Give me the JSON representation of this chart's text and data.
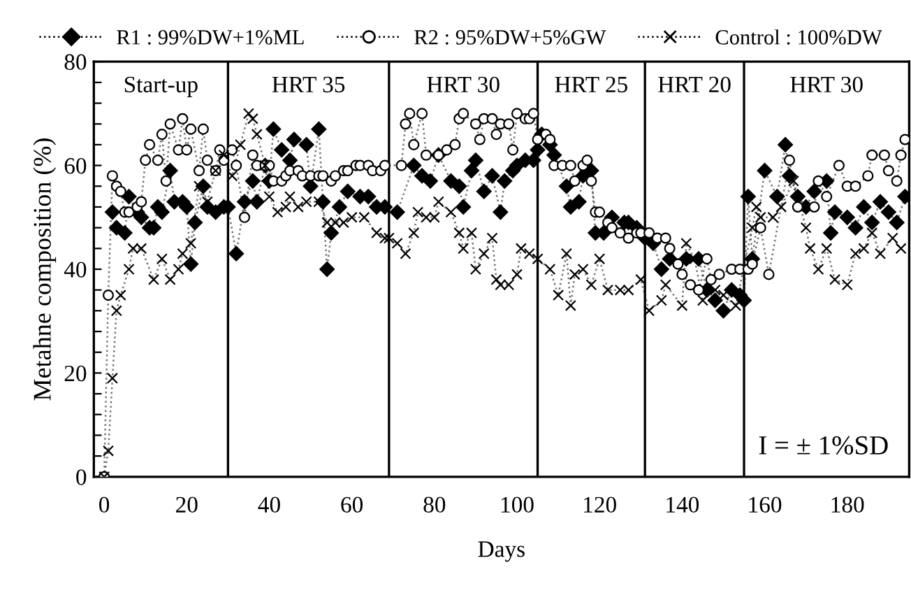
{
  "chart_data": {
    "type": "line",
    "xlabel": "Days",
    "ylabel": "Metahne composition (%)",
    "xlim": [
      -2.5,
      195
    ],
    "ylim": [
      0,
      80
    ],
    "xticks": [
      0,
      20,
      40,
      60,
      80,
      100,
      120,
      140,
      160,
      180
    ],
    "yticks": [
      0,
      {
        "value": 4,
        "label": null
      },
      {
        "value": 8,
        "label": null
      },
      {
        "value": 12,
        "label": null
      },
      {
        "value": 16,
        "label": null
      },
      20,
      {
        "value": 24,
        "label": null
      },
      {
        "value": 28,
        "label": null
      },
      {
        "value": 32,
        "label": null
      },
      {
        "value": 36,
        "label": null
      },
      40,
      {
        "value": 44,
        "label": null
      },
      {
        "value": 48,
        "label": null
      },
      {
        "value": 52,
        "label": null
      },
      {
        "value": 56,
        "label": null
      },
      60,
      {
        "value": 64,
        "label": null
      },
      {
        "value": 68,
        "label": null
      },
      {
        "value": 72,
        "label": null
      },
      {
        "value": 76,
        "label": null
      },
      80
    ],
    "grid": false,
    "legend": "top",
    "line_style": "dotted",
    "ref_lines": [
      {
        "axis": "x",
        "value": 30,
        "color": "#000000"
      },
      {
        "axis": "x",
        "value": 69,
        "color": "#000000"
      },
      {
        "axis": "x",
        "value": 105,
        "color": "#000000"
      },
      {
        "axis": "x",
        "value": 131,
        "color": "#000000"
      },
      {
        "axis": "x",
        "value": 155,
        "color": "#000000"
      }
    ],
    "annotations": [
      "Start-up",
      "HRT 35",
      "HRT 30",
      "HRT 25",
      "HRT 20",
      "HRT 30",
      "I = ± 1%SD"
    ],
    "series": [
      {
        "name": "R1 : 99%DW+1%ML",
        "color": "#000000",
        "marker": "diamond",
        "x": [
          2,
          3,
          5,
          6,
          8,
          9,
          11,
          12,
          13,
          14,
          16,
          17,
          19,
          20,
          21,
          22,
          24,
          25,
          27,
          29,
          30,
          32,
          34,
          36,
          37,
          39,
          40,
          41,
          43,
          45,
          46,
          49,
          50,
          52,
          53,
          54,
          55,
          57,
          59,
          62,
          64,
          66,
          68,
          71,
          75,
          77,
          79,
          81,
          84,
          86,
          87,
          89,
          90,
          92,
          94,
          96,
          97,
          99,
          100,
          102,
          104,
          105,
          106,
          108,
          109,
          112,
          113,
          115,
          116,
          118,
          119,
          121,
          123,
          126,
          127,
          129,
          131,
          133,
          135,
          137,
          141,
          144,
          146,
          148,
          150,
          152,
          154,
          155,
          156,
          157,
          160,
          163,
          165,
          166,
          168,
          170,
          172,
          175,
          176,
          177,
          180,
          182,
          184,
          186,
          188,
          190,
          192,
          194
        ],
        "values": [
          51,
          48,
          47,
          54,
          51,
          50,
          48,
          48,
          52,
          51,
          59,
          53,
          53,
          52,
          41,
          49,
          56,
          52,
          51,
          52,
          52,
          43,
          53,
          57,
          53,
          60,
          57,
          67,
          63,
          61,
          65,
          64,
          56,
          67,
          53,
          40,
          47,
          52,
          55,
          54,
          54,
          52,
          52,
          51,
          60,
          58,
          57,
          62,
          57,
          56,
          52,
          59,
          61,
          55,
          58,
          51,
          57,
          59,
          60,
          61,
          61,
          63,
          66,
          64,
          62,
          56,
          52,
          53,
          58,
          59,
          47,
          47,
          50,
          49,
          49,
          48,
          46,
          45,
          40,
          42,
          42,
          42,
          36,
          34,
          32,
          36,
          35,
          34,
          54,
          42,
          59,
          54,
          64,
          58,
          54,
          52,
          55,
          57,
          47,
          51,
          50,
          48,
          52,
          49,
          53,
          51,
          49,
          54
        ]
      },
      {
        "name": "R2 : 95%DW+5%GW",
        "color": "#000000",
        "marker": "circle",
        "x": [
          0,
          1,
          2,
          3,
          4,
          5,
          6,
          8,
          9,
          10,
          11,
          13,
          14,
          15,
          16,
          18,
          19,
          20,
          21,
          23,
          24,
          25,
          27,
          28,
          29,
          31,
          32,
          34,
          36,
          37,
          39,
          40,
          41,
          43,
          44,
          45,
          47,
          48,
          50,
          52,
          53,
          55,
          56,
          58,
          59,
          61,
          62,
          64,
          65,
          67,
          68,
          72,
          73,
          74,
          75,
          77,
          78,
          81,
          83,
          85,
          86,
          87,
          90,
          91,
          92,
          94,
          95,
          96,
          98,
          99,
          100,
          102,
          103,
          104,
          105,
          107,
          108,
          109,
          111,
          113,
          114,
          116,
          117,
          118,
          119,
          120,
          122,
          123,
          125,
          127,
          129,
          130,
          132,
          134,
          136,
          137,
          139,
          140,
          142,
          144,
          146,
          147,
          149,
          152,
          154,
          156,
          157,
          159,
          161,
          166,
          168,
          172,
          173,
          175,
          178,
          180,
          182,
          185,
          186,
          189,
          190,
          192,
          193,
          194
        ],
        "values": [
          0,
          35,
          58,
          56,
          55,
          51,
          51,
          52,
          53,
          61,
          64,
          61,
          66,
          57,
          68,
          63,
          69,
          63,
          67,
          59,
          67,
          61,
          59,
          63,
          61,
          63,
          60,
          50,
          62,
          60,
          60,
          60,
          57,
          57,
          58,
          59,
          59,
          58,
          58,
          58,
          58,
          57,
          58,
          59,
          59,
          60,
          60,
          60,
          59,
          59,
          60,
          60,
          68,
          70,
          64,
          70,
          62,
          62,
          63,
          64,
          69,
          70,
          68,
          65,
          69,
          69,
          66,
          68,
          68,
          63,
          70,
          69,
          69,
          70,
          65,
          66,
          65,
          60,
          60,
          60,
          57,
          60,
          61,
          57,
          51,
          51,
          49,
          48,
          47,
          46,
          47,
          47,
          47,
          46,
          46,
          44,
          41,
          39,
          37,
          36,
          42,
          38,
          39,
          40,
          40,
          40,
          41,
          48,
          39,
          61,
          52,
          52,
          57,
          54,
          60,
          56,
          56,
          58,
          62,
          62,
          59,
          57,
          62,
          65
        ]
      },
      {
        "name": "Control : 100%DW",
        "color": "#000000",
        "marker": "cross",
        "x": [
          0,
          1,
          2,
          3,
          4,
          6,
          7,
          9,
          12,
          14,
          16,
          18,
          19,
          21,
          23,
          25,
          27,
          29,
          31,
          33,
          35,
          36,
          37,
          39,
          40,
          42,
          44,
          45,
          47,
          49,
          52,
          54,
          56,
          58,
          60,
          63,
          66,
          68,
          69,
          71,
          73,
          75,
          76,
          78,
          80,
          81,
          84,
          86,
          87,
          89,
          90,
          92,
          94,
          95,
          96,
          98,
          100,
          101,
          103,
          105,
          108,
          110,
          112,
          113,
          114,
          116,
          118,
          120,
          122,
          125,
          127,
          130,
          132,
          135,
          136,
          140,
          141,
          143,
          145,
          148,
          150,
          153,
          157,
          158,
          159,
          162,
          164,
          167,
          170,
          171,
          173,
          175,
          177,
          180,
          182,
          184,
          186,
          188,
          191,
          193
        ],
        "values": [
          0,
          5,
          19,
          32,
          35,
          40,
          44,
          44,
          38,
          42,
          38,
          40,
          43,
          45,
          56,
          53,
          59,
          62,
          58,
          64,
          70,
          69,
          66,
          60,
          54,
          51,
          52,
          54,
          52,
          53,
          53,
          49,
          49,
          49,
          50,
          50,
          47,
          46,
          46,
          45,
          43,
          47,
          51,
          50,
          50,
          53,
          51,
          47,
          44,
          47,
          40,
          43,
          46,
          38,
          37,
          37,
          39,
          44,
          43,
          42,
          40,
          35,
          43,
          33,
          39,
          40,
          37,
          42,
          36,
          36,
          36,
          38,
          32,
          34,
          37,
          33,
          45,
          42,
          34,
          36,
          35,
          33,
          48,
          52,
          50,
          50,
          52,
          57,
          48,
          44,
          40,
          44,
          38,
          37,
          43,
          44,
          47,
          43,
          46,
          44
        ]
      }
    ]
  }
}
